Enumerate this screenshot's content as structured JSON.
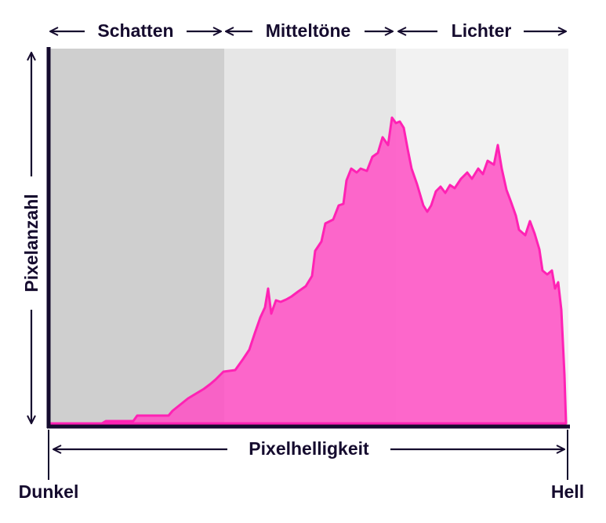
{
  "zones": {
    "shadows": "Schatten",
    "midtones": "Mitteltöne",
    "highlights": "Lichter"
  },
  "axes": {
    "y_label": "Pixelanzahl",
    "x_label": "Pixelhelligkeit",
    "x_start": "Dunkel",
    "x_end": "Hell"
  }
}
